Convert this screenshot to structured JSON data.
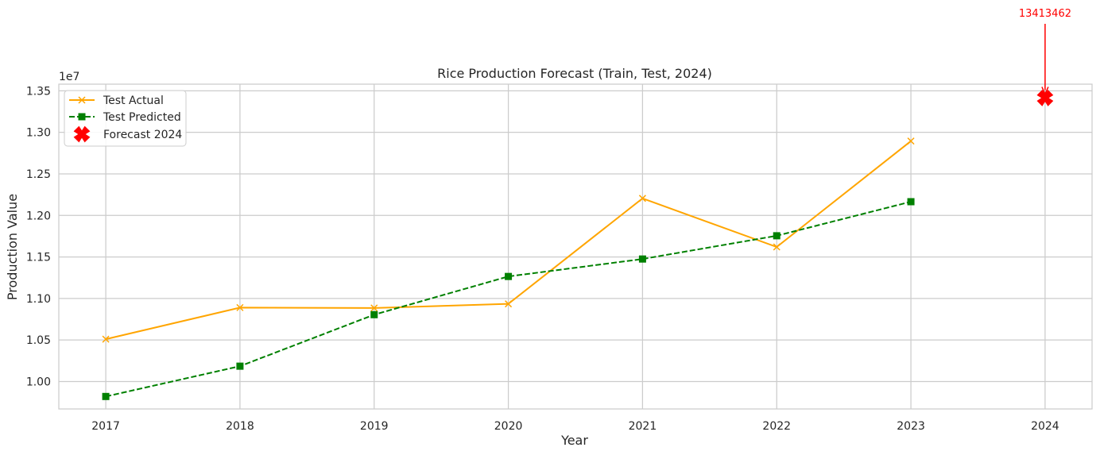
{
  "chart_data": {
    "type": "line",
    "title": "Rice Production Forecast (Train, Test, 2024)",
    "xlabel": "Year",
    "ylabel": "Production Value",
    "y_offset_label": "1e7",
    "xlim": [
      2016.65,
      2024.35
    ],
    "ylim": [
      9670000,
      13580000
    ],
    "x_ticks": [
      2017,
      2018,
      2019,
      2020,
      2021,
      2022,
      2023,
      2024
    ],
    "x_tick_labels": [
      "2017",
      "2018",
      "2019",
      "2020",
      "2021",
      "2022",
      "2023",
      "2024"
    ],
    "y_ticks": [
      10000000,
      10500000,
      11000000,
      11500000,
      12000000,
      12500000,
      13000000,
      13500000
    ],
    "y_tick_labels": [
      "1.00",
      "1.05",
      "1.10",
      "1.15",
      "1.20",
      "1.25",
      "1.30",
      "1.35"
    ],
    "grid": true,
    "legend_position": "top-left",
    "series": [
      {
        "name": "Test Actual",
        "style": "line-x",
        "color": "#ffa500",
        "x": [
          2017,
          2018,
          2019,
          2020,
          2021,
          2022,
          2023
        ],
        "values": [
          10510000,
          10890000,
          10885000,
          10935000,
          12205000,
          11620000,
          12895000
        ]
      },
      {
        "name": "Test Predicted",
        "style": "dashed-square",
        "color": "#008000",
        "x": [
          2017,
          2018,
          2019,
          2020,
          2021,
          2022,
          2023
        ],
        "values": [
          9820000,
          10185000,
          10805000,
          11265000,
          11475000,
          11755000,
          12165000
        ]
      },
      {
        "name": "Forecast 2024",
        "style": "scatter-bigx",
        "color": "#ff0000",
        "x": [
          2024
        ],
        "values": [
          13413462
        ]
      }
    ],
    "annotations": [
      {
        "text": "13413462",
        "x": 2024,
        "y": 13413462,
        "color": "#ff0000"
      }
    ]
  }
}
